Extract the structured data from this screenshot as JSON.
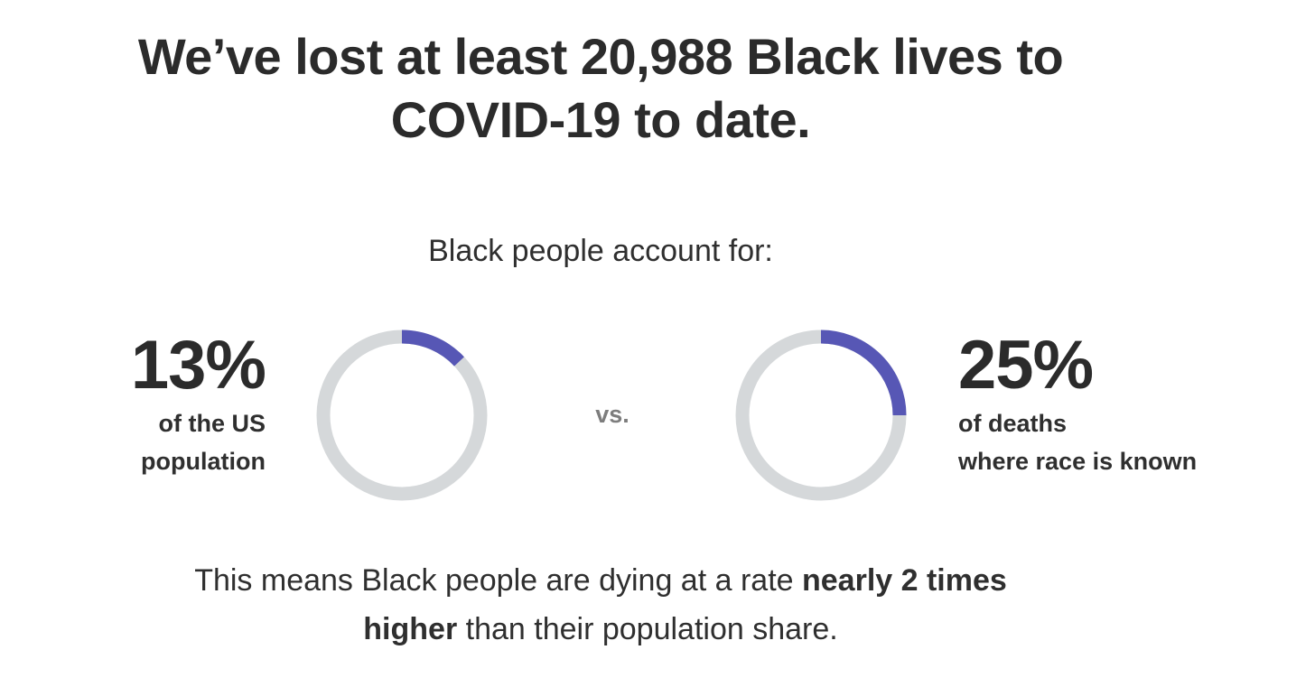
{
  "headline": {
    "line1": "We’ve lost at least 20,988 Black lives to",
    "line2": "COVID-19 to date."
  },
  "subhead": "Black people account for:",
  "comparison_word": "vs.",
  "summary": {
    "pre": "This means Black people are dying at a rate ",
    "bold1": "nearly 2 times",
    "bold2": "higher",
    "post": " than their population share."
  },
  "colors": {
    "accent": "#5757b5",
    "track": "#d5d8da",
    "text": "#2f2f2f",
    "muted": "#7d7d7d"
  },
  "chart_data": [
    {
      "type": "pie",
      "title": "13%",
      "labels": [
        "of the US",
        "population"
      ],
      "value_percent": 13,
      "values": [
        13,
        87
      ]
    },
    {
      "type": "pie",
      "title": "25%",
      "labels": [
        "of deaths",
        "where race is known"
      ],
      "value_percent": 25,
      "values": [
        25,
        75
      ]
    }
  ]
}
